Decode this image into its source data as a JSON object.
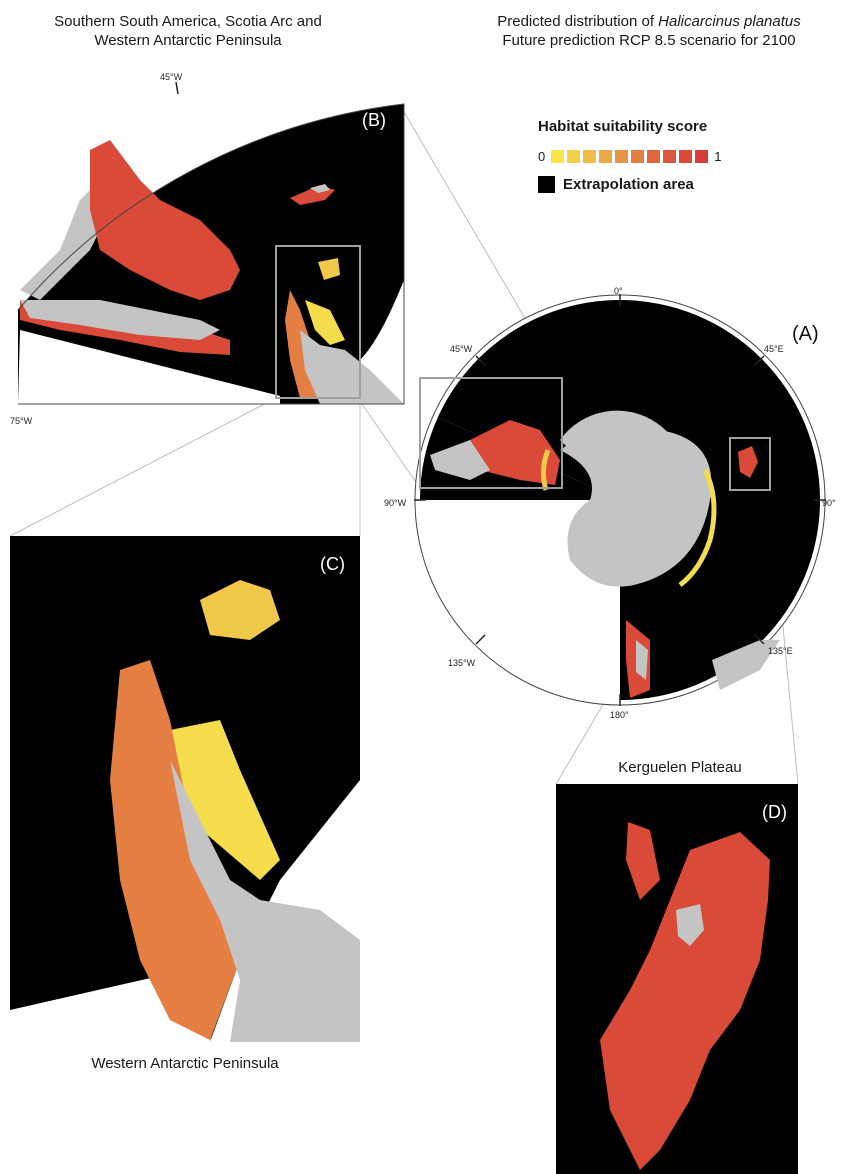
{
  "titles": {
    "panel_b_line1": "Southern South America, Scotia Arc and",
    "panel_b_line2": "Western Antarctic Peninsula",
    "main_line1_prefix": "Predicted distribution of ",
    "main_species": "Halicarcinus planatus",
    "main_line2": "Future prediction RCP 8.5 scenario for 2100",
    "panel_c_caption": "Western Antarctic Peninsula",
    "panel_d_title": "Kerguelen Plateau"
  },
  "legend": {
    "title": "Habitat suitability score",
    "min": "0",
    "max": "1",
    "ramp_colors": [
      "#f7e54a",
      "#f3d04a",
      "#efbd4b",
      "#ebaa48",
      "#e79445",
      "#e47e42",
      "#e0683e",
      "#dc563b",
      "#d94a38",
      "#d63f36"
    ],
    "extrapolation_label": "Extrapolation area",
    "extrapolation_color": "#000000"
  },
  "panels": {
    "a": "(A)",
    "b": "(B)",
    "c": "(C)",
    "d": "(D)"
  },
  "axis_labels": {
    "a_0": "0°",
    "a_45w": "45°W",
    "a_45e": "45°E",
    "a_90w": "90°W",
    "a_90e": "90°",
    "a_135w": "135°W",
    "a_135e": "135°E",
    "a_180": "180°",
    "b_45w": "45°W",
    "b_75w": "75°W"
  },
  "colors": {
    "land": "#c4c4c4",
    "background": "#000000",
    "high": "#d94a38",
    "mid": "#e47e42",
    "low": "#f5dc4c",
    "frame": "#9e9e9e"
  }
}
